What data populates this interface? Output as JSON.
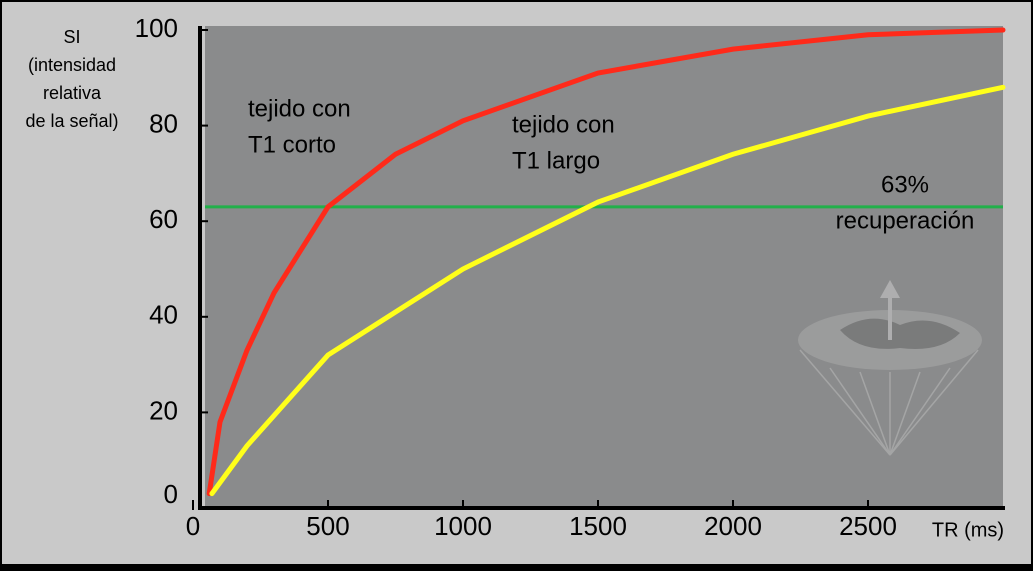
{
  "chart_data": {
    "type": "line",
    "y_label": [
      "SI",
      "(intensidad",
      "relativa",
      "de la señal)"
    ],
    "x_label": "TR (ms)",
    "xlim": [
      0,
      3000
    ],
    "xticks": [
      0,
      500,
      1000,
      1500,
      2000,
      2500
    ],
    "ylim": [
      0,
      100
    ],
    "yticks": [
      0,
      20,
      40,
      60,
      80,
      100
    ],
    "series": [
      {
        "color": "#ff2a1a",
        "x": [
          60,
          100,
          200,
          300,
          500,
          750,
          1000,
          1500,
          2000,
          2500,
          3000
        ],
        "values": [
          3,
          18,
          33,
          45,
          63,
          74,
          81,
          91,
          96,
          99,
          100
        ]
      },
      {
        "color": "#ffff1a",
        "x": [
          70,
          200,
          500,
          1000,
          1500,
          2000,
          2500,
          3000
        ],
        "values": [
          3,
          13,
          32,
          50,
          64,
          74,
          82,
          88
        ]
      }
    ],
    "annotations": [
      {
        "lines": [
          "tejido con",
          "T1 corto"
        ],
        "color": "#000"
      },
      {
        "lines": [
          "tejido con",
          "T1 largo"
        ],
        "color": "#000"
      }
    ],
    "hline": {
      "value": 63,
      "color": "#22b04a",
      "label": [
        "63%",
        "recuperación"
      ]
    }
  }
}
